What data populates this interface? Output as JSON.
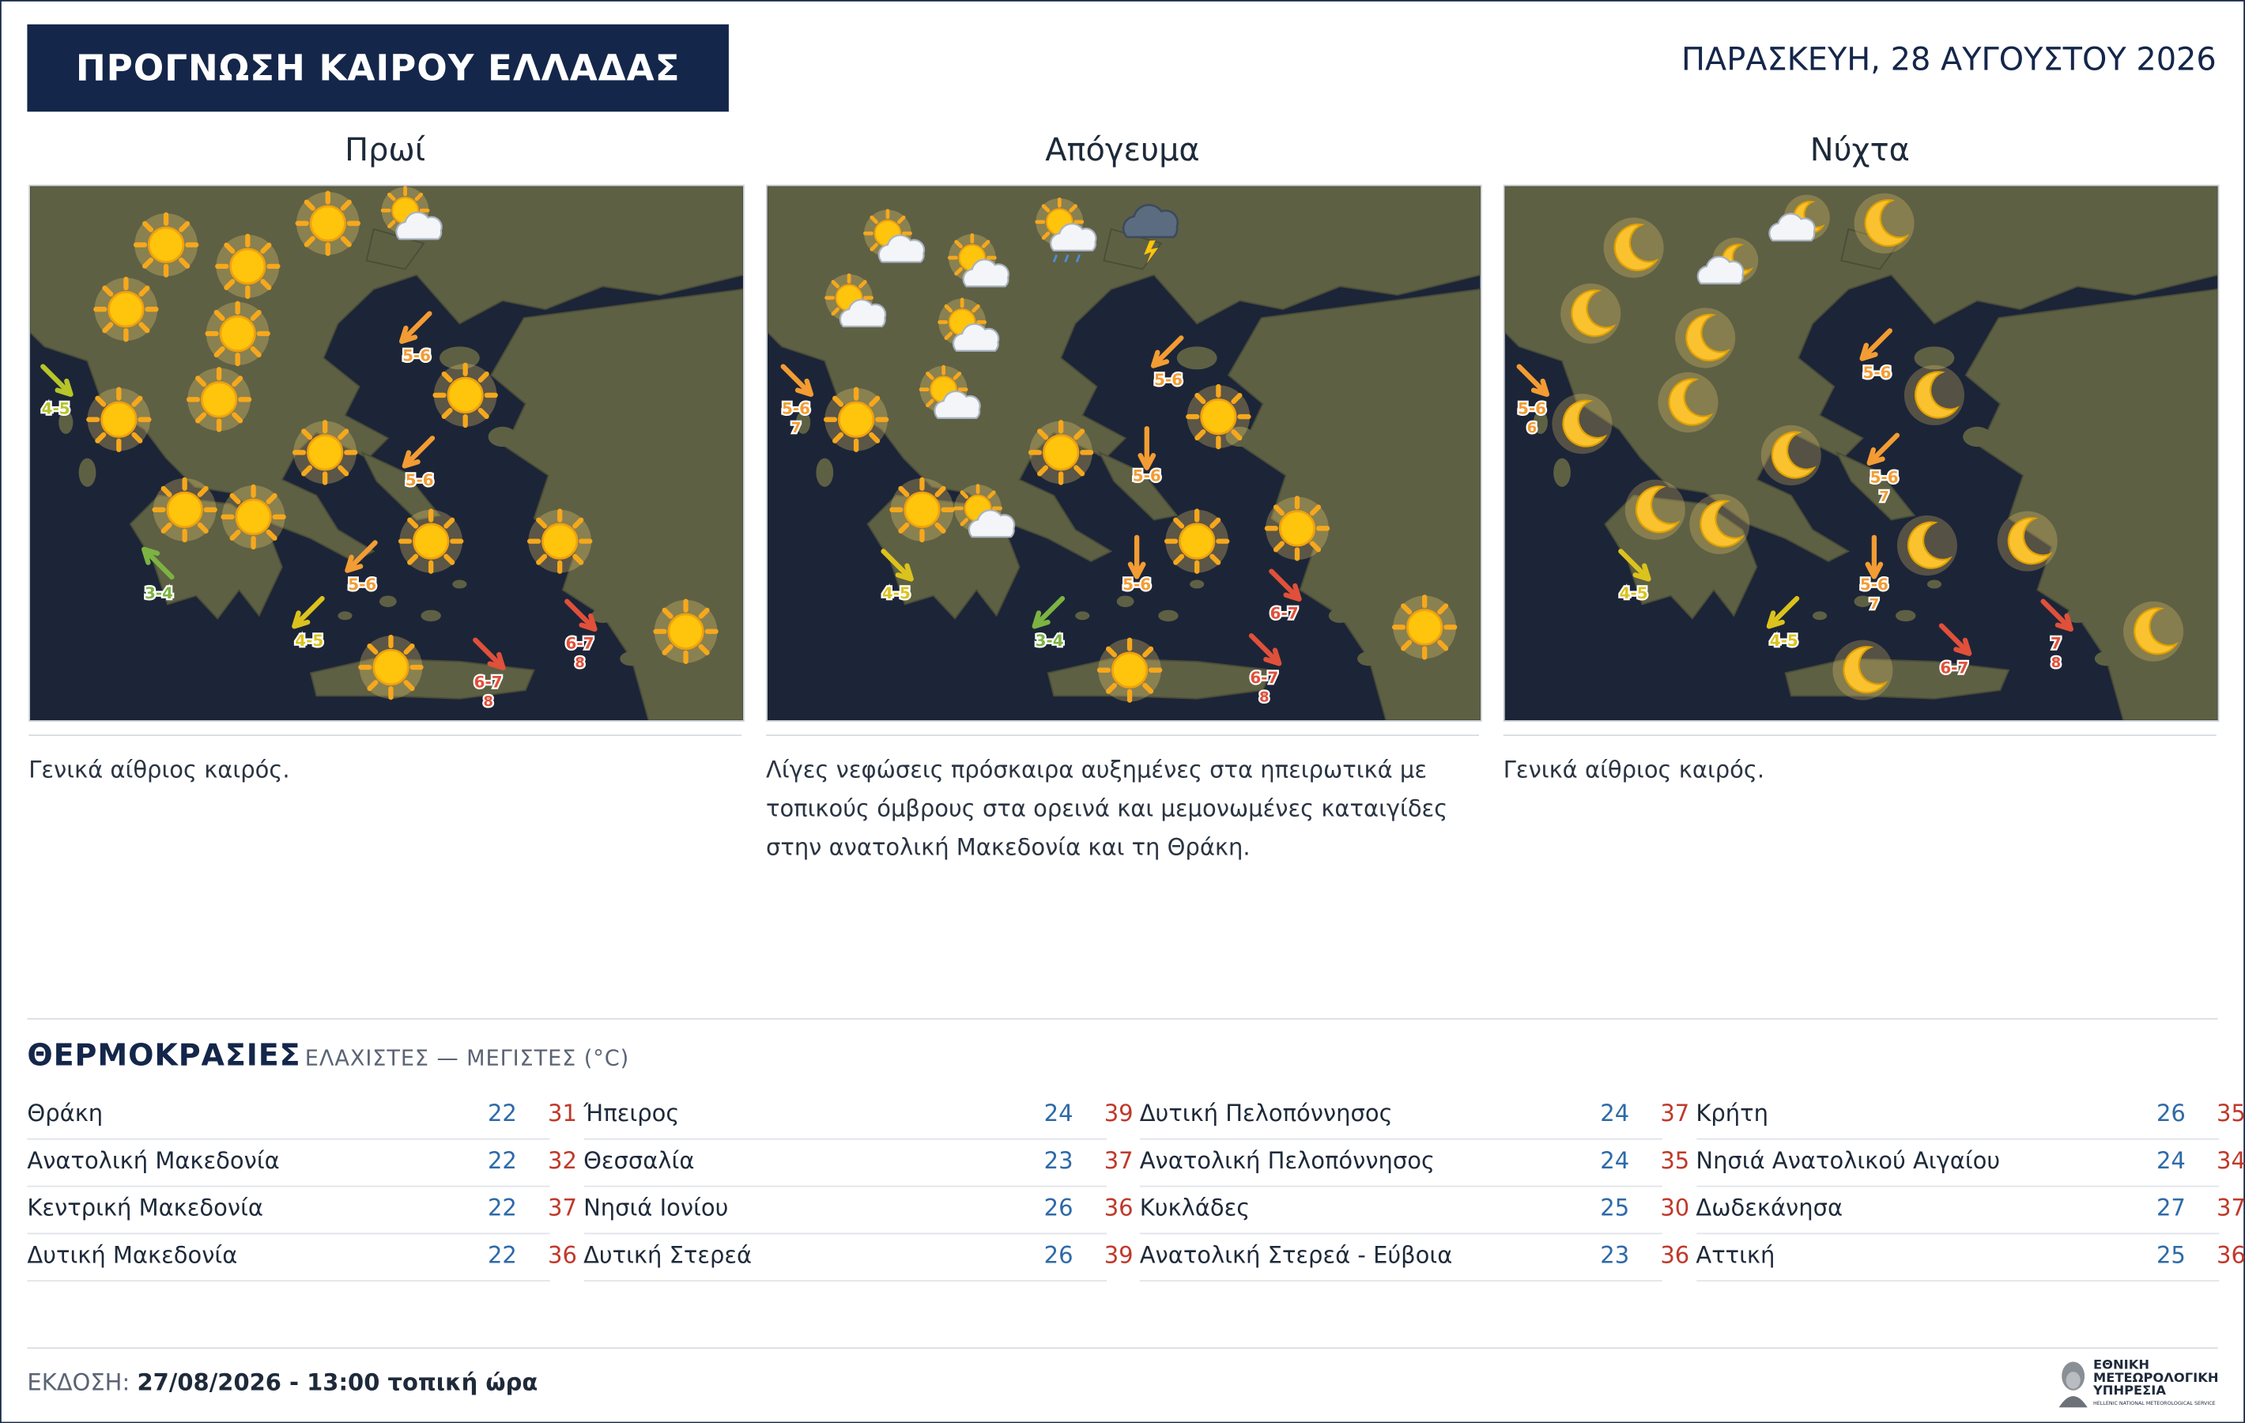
{
  "header": {
    "title": "ΠΡΟΓΝΩΣΗ ΚΑΙΡΟΥ ΕΛΛΑΔΑΣ",
    "date": "ΠΑΡΑΣΚΕΥΗ, 28 ΑΥΓΟΥΣΤΟΥ 2026"
  },
  "panels": [
    {
      "title": "Πρωί",
      "description": "Γενικά αίθριος καιρός.",
      "winds": [
        {
          "speed": "4-5"
        },
        {
          "speed": "5-6"
        },
        {
          "speed": "5-6"
        },
        {
          "speed": "3-4"
        },
        {
          "speed": "5-6"
        },
        {
          "speed": "4-5"
        },
        {
          "speed": "6-7",
          "gust": "8"
        },
        {
          "speed": "6-7",
          "gust": "8"
        }
      ]
    },
    {
      "title": "Απόγευμα",
      "description": "Λίγες νεφώσεις πρόσκαιρα αυξημένες στα ηπειρωτικά με τοπικούς όμβρους στα ορεινά και μεμονωμένες καταιγίδες στην ανατολική Μακεδονία και τη Θράκη.",
      "winds": [
        {
          "speed": "5-6",
          "gust": "7"
        },
        {
          "speed": "5-6"
        },
        {
          "speed": "5-6"
        },
        {
          "speed": "4-5"
        },
        {
          "speed": "5-6"
        },
        {
          "speed": "6-7"
        },
        {
          "speed": "3-4"
        },
        {
          "speed": "6-7",
          "gust": "8"
        }
      ]
    },
    {
      "title": "Νύχτα",
      "description": "Γενικά αίθριος καιρός.",
      "winds": [
        {
          "speed": "5-6",
          "gust": "6"
        },
        {
          "speed": "5-6"
        },
        {
          "speed": "5-6",
          "gust": "7"
        },
        {
          "speed": "4-5"
        },
        {
          "speed": "5-6",
          "gust": "7"
        },
        {
          "speed": "4-5"
        },
        {
          "speed": "6-7"
        },
        {
          "speed": "7",
          "gust": "8"
        }
      ]
    }
  ],
  "temperatures": {
    "title": "ΘΕΡΜΟΚΡΑΣΙΕΣ",
    "subtitle": "ΕΛΑΧΙΣΤΕΣ — ΜΕΓΙΣΤΕΣ (°C)",
    "columns": [
      [
        {
          "region": "Θράκη",
          "min": 22,
          "max": 31
        },
        {
          "region": "Ανατολική Μακεδονία",
          "min": 22,
          "max": 32
        },
        {
          "region": "Κεντρική Μακεδονία",
          "min": 22,
          "max": 37
        },
        {
          "region": "Δυτική Μακεδονία",
          "min": 22,
          "max": 36
        }
      ],
      [
        {
          "region": "Ήπειρος",
          "min": 24,
          "max": 39
        },
        {
          "region": "Θεσσαλία",
          "min": 23,
          "max": 37
        },
        {
          "region": "Νησιά Ιονίου",
          "min": 26,
          "max": 36
        },
        {
          "region": "Δυτική Στερεά",
          "min": 26,
          "max": 39
        }
      ],
      [
        {
          "region": "Δυτική Πελοπόννησος",
          "min": 24,
          "max": 37
        },
        {
          "region": "Ανατολική Πελοπόννησος",
          "min": 24,
          "max": 35
        },
        {
          "region": "Κυκλάδες",
          "min": 25,
          "max": 30
        },
        {
          "region": "Ανατολική Στερεά - Εύβοια",
          "min": 23,
          "max": 36
        }
      ],
      [
        {
          "region": "Κρήτη",
          "min": 26,
          "max": 35
        },
        {
          "region": "Νησιά Ανατολικού Αιγαίου",
          "min": 24,
          "max": 34
        },
        {
          "region": "Δωδεκάνησα",
          "min": 27,
          "max": 37
        },
        {
          "region": "Αττική",
          "min": 25,
          "max": 36
        }
      ]
    ]
  },
  "footer": {
    "label": "ΕΚΔΟΣΗ:",
    "issued": "27/08/2026 - 13:00 τοπική ώρα",
    "logo": [
      "ΕΘΝΙΚΗ",
      "ΜΕΤΕΩΡΟΛΟΓΙΚΗ",
      "ΥΠΗΡΕΣΙΑ"
    ],
    "logo_sub": "HELLENIC NATIONAL METEOROLOGICAL SERVICE"
  }
}
